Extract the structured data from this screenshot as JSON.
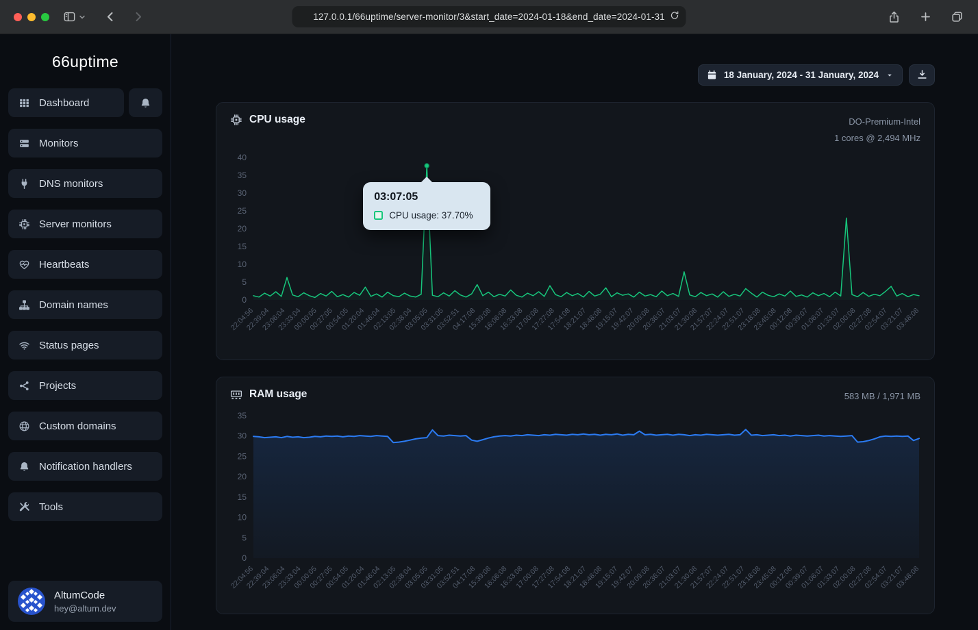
{
  "browser": {
    "url": "127.0.0.1/66uptime/server-monitor/3&start_date=2024-01-18&end_date=2024-01-31"
  },
  "sidebar": {
    "logo": "66uptime",
    "items": [
      {
        "id": "dashboard",
        "label": "Dashboard",
        "icon": "grid",
        "has_bell": true
      },
      {
        "id": "monitors",
        "label": "Monitors",
        "icon": "server"
      },
      {
        "id": "dns-monitors",
        "label": "DNS monitors",
        "icon": "plug"
      },
      {
        "id": "server-monitors",
        "label": "Server monitors",
        "icon": "chip"
      },
      {
        "id": "heartbeats",
        "label": "Heartbeats",
        "icon": "heart-pulse"
      },
      {
        "id": "domain-names",
        "label": "Domain names",
        "icon": "sitemap"
      },
      {
        "id": "status-pages",
        "label": "Status pages",
        "icon": "wifi"
      },
      {
        "id": "projects",
        "label": "Projects",
        "icon": "share-nodes"
      },
      {
        "id": "custom-domains",
        "label": "Custom domains",
        "icon": "globe"
      },
      {
        "id": "notification-handlers",
        "label": "Notification handlers",
        "icon": "bell"
      },
      {
        "id": "tools",
        "label": "Tools",
        "icon": "tools"
      }
    ],
    "account": {
      "name": "AltumCode",
      "email": "hey@altum.dev"
    }
  },
  "toolbar": {
    "date_range": "18 January, 2024 - 31 January, 2024"
  },
  "colors": {
    "cpu_line": "#17c67c",
    "ram_line": "#2b7bf3",
    "tooltip_bg": "#d9e6f0",
    "card_bg": "#12161c",
    "sidebar_item_bg": "#161c26"
  },
  "chart_data": [
    {
      "id": "cpu",
      "type": "line",
      "title": "CPU usage",
      "meta_line1": "DO-Premium-Intel",
      "meta_line2": "1 cores @ 2,494 MHz",
      "unit": "%",
      "color": "#17c67c",
      "fill": "rgba(23,198,124,0.05)",
      "stroke_width": 1.5,
      "ylim": [
        0,
        40
      ],
      "yticks": [
        0,
        5,
        10,
        15,
        20,
        25,
        30,
        35,
        40
      ],
      "legend_position": "none",
      "grid": false,
      "xticks": [
        "22:04:56",
        "22:39:04",
        "23:06:04",
        "23:33:04",
        "00:00:05",
        "00:27:05",
        "00:54:05",
        "01:20:04",
        "01:46:04",
        "02:13:05",
        "02:38:04",
        "03:05:05",
        "03:31:05",
        "03:52:51",
        "04:17:08",
        "15:39:08",
        "16:06:08",
        "16:33:08",
        "17:00:08",
        "17:27:08",
        "17:54:08",
        "18:21:07",
        "18:48:08",
        "19:15:07",
        "19:42:07",
        "20:09:08",
        "20:36:07",
        "21:03:07",
        "21:30:08",
        "21:57:07",
        "22:24:07",
        "22:51:07",
        "23:18:08",
        "23:45:08",
        "00:12:08",
        "00:39:07",
        "01:06:07",
        "01:33:07",
        "02:00:08",
        "02:27:08",
        "02:54:07",
        "03:21:07",
        "03:48:08"
      ],
      "values": [
        1.2,
        0.8,
        1.9,
        1.1,
        2.3,
        1.0,
        6.3,
        1.4,
        0.9,
        2.0,
        1.2,
        0.7,
        1.8,
        1.1,
        2.4,
        0.9,
        1.5,
        0.8,
        2.1,
        1.3,
        3.6,
        1.0,
        1.7,
        0.8,
        2.2,
        1.2,
        0.9,
        1.9,
        1.1,
        0.8,
        1.6,
        37.7,
        1.3,
        0.9,
        2.0,
        1.1,
        2.6,
        1.4,
        0.8,
        1.7,
        4.3,
        1.2,
        2.2,
        0.9,
        1.6,
        1.1,
        2.8,
        1.3,
        0.8,
        1.9,
        1.2,
        2.3,
        1.0,
        4.0,
        1.5,
        0.9,
        2.1,
        1.2,
        1.8,
        0.8,
        2.4,
        1.1,
        1.6,
        3.4,
        0.9,
        2.0,
        1.3,
        1.7,
        0.8,
        2.2,
        1.1,
        1.5,
        0.9,
        2.5,
        1.2,
        1.8,
        1.0,
        7.9,
        1.4,
        0.9,
        2.1,
        1.2,
        1.7,
        0.8,
        2.3,
        1.0,
        1.6,
        1.1,
        3.2,
        1.9,
        0.8,
        2.2,
        1.3,
        0.9,
        1.7,
        1.1,
        2.5,
        1.0,
        1.4,
        0.8,
        2.0,
        1.2,
        1.8,
        0.9,
        2.2,
        1.1,
        23.0,
        1.5,
        0.9,
        2.1,
        1.0,
        1.6,
        1.2,
        2.4,
        3.8,
        1.1,
        1.8,
        0.9,
        1.5,
        1.2
      ],
      "tooltip": {
        "time": "03:07:05",
        "label": "CPU usage: 37.70%",
        "value": 37.7
      }
    },
    {
      "id": "ram",
      "type": "area",
      "title": "RAM usage",
      "meta_line1": "583 MB / 1,971 MB",
      "unit": "MB",
      "color": "#2b7bf3",
      "fill": [
        "rgba(43,123,243,0.16)",
        "rgba(43,123,243,0.03)"
      ],
      "stroke_width": 2,
      "ylim": [
        0,
        35
      ],
      "yticks": [
        0,
        5,
        10,
        15,
        20,
        25,
        30,
        35
      ],
      "legend_position": "none",
      "grid": false,
      "xticks": [
        "22:04:56",
        "22:39:04",
        "23:06:04",
        "23:33:04",
        "00:00:05",
        "00:27:05",
        "00:54:05",
        "01:20:04",
        "01:46:04",
        "02:13:05",
        "02:38:04",
        "03:05:05",
        "03:31:05",
        "03:52:51",
        "04:17:08",
        "15:39:08",
        "16:06:08",
        "16:33:08",
        "17:00:08",
        "17:27:08",
        "17:54:08",
        "18:21:07",
        "18:48:08",
        "19:15:07",
        "19:42:07",
        "20:09:08",
        "20:36:07",
        "21:03:07",
        "21:30:08",
        "21:57:07",
        "22:24:07",
        "22:51:07",
        "23:18:08",
        "23:45:08",
        "00:12:08",
        "00:39:07",
        "01:06:07",
        "01:33:07",
        "02:00:08",
        "02:27:08",
        "02:54:07",
        "03:21:07",
        "03:48:08"
      ],
      "values": [
        29.9,
        29.8,
        29.6,
        29.7,
        29.8,
        29.6,
        29.9,
        29.7,
        29.8,
        29.6,
        29.7,
        29.9,
        29.8,
        30.0,
        29.9,
        30.0,
        29.8,
        30.0,
        29.9,
        30.1,
        30.0,
        29.9,
        30.1,
        30.0,
        29.9,
        28.4,
        28.5,
        28.7,
        29.0,
        29.3,
        29.5,
        29.6,
        31.5,
        30.1,
        30.0,
        30.2,
        30.1,
        30.0,
        30.1,
        29.0,
        28.7,
        29.1,
        29.5,
        29.8,
        30.0,
        30.1,
        30.0,
        30.2,
        30.1,
        30.3,
        30.2,
        30.1,
        30.3,
        30.2,
        30.4,
        30.3,
        30.2,
        30.4,
        30.3,
        30.5,
        30.3,
        30.4,
        30.2,
        30.4,
        30.3,
        30.5,
        30.2,
        30.4,
        30.3,
        31.2,
        30.3,
        30.4,
        30.2,
        30.3,
        30.4,
        30.2,
        30.4,
        30.3,
        30.1,
        30.3,
        30.2,
        30.4,
        30.3,
        30.2,
        30.3,
        30.4,
        30.2,
        30.3,
        31.6,
        30.2,
        30.3,
        30.1,
        30.2,
        30.3,
        30.1,
        30.2,
        30.0,
        30.2,
        30.1,
        30.0,
        30.1,
        30.2,
        30.0,
        30.1,
        30.0,
        29.9,
        30.0,
        30.1,
        28.5,
        28.6,
        28.9,
        29.3,
        29.8,
        30.0,
        29.9,
        30.0,
        29.9,
        30.0,
        28.9,
        29.4
      ]
    }
  ]
}
